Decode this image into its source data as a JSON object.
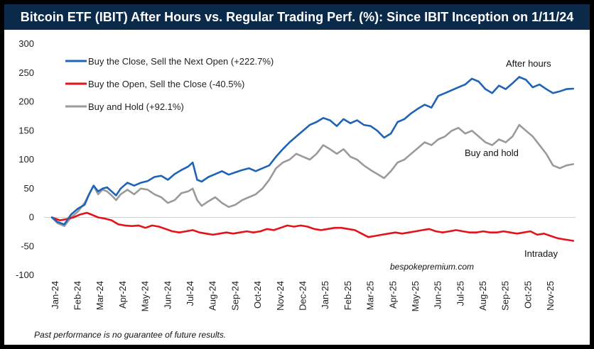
{
  "chart_data": {
    "type": "line",
    "title": "Bitcoin ETF (IBIT) After Hours vs. Regular Trading Perf. (%): Since IBIT Inception on 1/11/24",
    "ylim": [
      -100,
      300
    ],
    "y_ticks": [
      "300",
      "250",
      "200",
      "150",
      "100",
      "50",
      "0",
      "-50",
      "-100"
    ],
    "y_tick_values": [
      300,
      250,
      200,
      150,
      100,
      50,
      0,
      -50,
      -100
    ],
    "x_labels": [
      "Jan-24",
      "Feb-24",
      "Mar-24",
      "Apr-24",
      "May-24",
      "Jun-24",
      "Jul-24",
      "Aug-24",
      "Sep-24",
      "Oct-24",
      "Nov-24",
      "Dec-24",
      "Jan-25",
      "Feb-25",
      "Mar-25",
      "Apr-25",
      "May-25",
      "Jun-25",
      "Jul-25",
      "Aug-25",
      "Sep-25",
      "Oct-25",
      "Nov-25"
    ],
    "x_start": 0,
    "x_end": 23.6,
    "series": [
      {
        "name": "Buy the Close, Sell the Next Open (+222.7%)",
        "color": "#1f63b6",
        "points": [
          [
            0.35,
            0
          ],
          [
            0.6,
            -8
          ],
          [
            0.9,
            -12
          ],
          [
            1.2,
            5
          ],
          [
            1.5,
            15
          ],
          [
            1.8,
            22
          ],
          [
            2.0,
            40
          ],
          [
            2.2,
            55
          ],
          [
            2.4,
            45
          ],
          [
            2.6,
            50
          ],
          [
            2.8,
            52
          ],
          [
            3.0,
            45
          ],
          [
            3.2,
            38
          ],
          [
            3.4,
            50
          ],
          [
            3.7,
            60
          ],
          [
            4.0,
            55
          ],
          [
            4.3,
            60
          ],
          [
            4.6,
            63
          ],
          [
            4.9,
            70
          ],
          [
            5.2,
            72
          ],
          [
            5.5,
            65
          ],
          [
            5.8,
            75
          ],
          [
            6.1,
            82
          ],
          [
            6.4,
            88
          ],
          [
            6.6,
            95
          ],
          [
            6.8,
            65
          ],
          [
            7.0,
            62
          ],
          [
            7.3,
            70
          ],
          [
            7.6,
            75
          ],
          [
            7.9,
            80
          ],
          [
            8.2,
            74
          ],
          [
            8.5,
            78
          ],
          [
            8.8,
            82
          ],
          [
            9.1,
            85
          ],
          [
            9.4,
            80
          ],
          [
            9.7,
            85
          ],
          [
            10.0,
            90
          ],
          [
            10.3,
            105
          ],
          [
            10.6,
            118
          ],
          [
            10.9,
            130
          ],
          [
            11.2,
            140
          ],
          [
            11.5,
            150
          ],
          [
            11.8,
            160
          ],
          [
            12.1,
            165
          ],
          [
            12.4,
            172
          ],
          [
            12.7,
            168
          ],
          [
            13.0,
            158
          ],
          [
            13.3,
            170
          ],
          [
            13.6,
            163
          ],
          [
            13.9,
            168
          ],
          [
            14.2,
            160
          ],
          [
            14.5,
            158
          ],
          [
            14.8,
            150
          ],
          [
            15.1,
            138
          ],
          [
            15.4,
            145
          ],
          [
            15.7,
            165
          ],
          [
            16.0,
            170
          ],
          [
            16.3,
            180
          ],
          [
            16.6,
            188
          ],
          [
            16.9,
            195
          ],
          [
            17.2,
            190
          ],
          [
            17.5,
            210
          ],
          [
            17.8,
            215
          ],
          [
            18.1,
            220
          ],
          [
            18.4,
            225
          ],
          [
            18.7,
            230
          ],
          [
            19.0,
            240
          ],
          [
            19.3,
            235
          ],
          [
            19.6,
            222
          ],
          [
            19.9,
            215
          ],
          [
            20.2,
            228
          ],
          [
            20.5,
            222
          ],
          [
            20.8,
            232
          ],
          [
            21.1,
            243
          ],
          [
            21.4,
            238
          ],
          [
            21.7,
            225
          ],
          [
            22.0,
            230
          ],
          [
            22.3,
            222
          ],
          [
            22.6,
            215
          ],
          [
            22.9,
            218
          ],
          [
            23.2,
            222
          ],
          [
            23.5,
            222.7
          ]
        ]
      },
      {
        "name": "Buy the Open, Sell the Close (-40.5%)",
        "color": "#e6121a",
        "points": [
          [
            0.35,
            0
          ],
          [
            0.7,
            -5
          ],
          [
            1.0,
            -3
          ],
          [
            1.3,
            0
          ],
          [
            1.6,
            5
          ],
          [
            1.9,
            8
          ],
          [
            2.1,
            5
          ],
          [
            2.4,
            0
          ],
          [
            2.7,
            -2
          ],
          [
            3.0,
            -5
          ],
          [
            3.3,
            -12
          ],
          [
            3.6,
            -14
          ],
          [
            3.9,
            -15
          ],
          [
            4.2,
            -14
          ],
          [
            4.5,
            -18
          ],
          [
            4.8,
            -14
          ],
          [
            5.1,
            -16
          ],
          [
            5.4,
            -20
          ],
          [
            5.7,
            -24
          ],
          [
            6.0,
            -26
          ],
          [
            6.3,
            -24
          ],
          [
            6.6,
            -22
          ],
          [
            6.9,
            -26
          ],
          [
            7.2,
            -28
          ],
          [
            7.5,
            -30
          ],
          [
            7.8,
            -28
          ],
          [
            8.1,
            -26
          ],
          [
            8.4,
            -28
          ],
          [
            8.7,
            -26
          ],
          [
            9.0,
            -24
          ],
          [
            9.3,
            -26
          ],
          [
            9.6,
            -24
          ],
          [
            9.9,
            -20
          ],
          [
            10.2,
            -22
          ],
          [
            10.5,
            -18
          ],
          [
            10.8,
            -14
          ],
          [
            11.1,
            -16
          ],
          [
            11.4,
            -14
          ],
          [
            11.7,
            -16
          ],
          [
            12.0,
            -20
          ],
          [
            12.3,
            -22
          ],
          [
            12.6,
            -20
          ],
          [
            12.9,
            -18
          ],
          [
            13.2,
            -18
          ],
          [
            13.5,
            -20
          ],
          [
            13.8,
            -22
          ],
          [
            14.1,
            -28
          ],
          [
            14.4,
            -34
          ],
          [
            14.7,
            -32
          ],
          [
            15.0,
            -30
          ],
          [
            15.3,
            -28
          ],
          [
            15.6,
            -26
          ],
          [
            15.9,
            -28
          ],
          [
            16.2,
            -26
          ],
          [
            16.5,
            -24
          ],
          [
            16.8,
            -22
          ],
          [
            17.1,
            -20
          ],
          [
            17.4,
            -24
          ],
          [
            17.7,
            -26
          ],
          [
            18.0,
            -24
          ],
          [
            18.3,
            -22
          ],
          [
            18.6,
            -24
          ],
          [
            18.9,
            -26
          ],
          [
            19.2,
            -26
          ],
          [
            19.5,
            -24
          ],
          [
            19.8,
            -26
          ],
          [
            20.1,
            -26
          ],
          [
            20.4,
            -24
          ],
          [
            20.7,
            -26
          ],
          [
            21.0,
            -28
          ],
          [
            21.3,
            -26
          ],
          [
            21.6,
            -24
          ],
          [
            21.9,
            -30
          ],
          [
            22.2,
            -28
          ],
          [
            22.5,
            -32
          ],
          [
            22.8,
            -36
          ],
          [
            23.1,
            -38
          ],
          [
            23.5,
            -40.5
          ]
        ]
      },
      {
        "name": "Buy and Hold (+92.1%)",
        "color": "#9a9a9a",
        "points": [
          [
            0.35,
            0
          ],
          [
            0.6,
            -10
          ],
          [
            0.9,
            -15
          ],
          [
            1.2,
            0
          ],
          [
            1.5,
            10
          ],
          [
            1.8,
            25
          ],
          [
            2.0,
            40
          ],
          [
            2.2,
            55
          ],
          [
            2.4,
            40
          ],
          [
            2.6,
            48
          ],
          [
            2.8,
            45
          ],
          [
            3.0,
            38
          ],
          [
            3.2,
            30
          ],
          [
            3.4,
            40
          ],
          [
            3.7,
            48
          ],
          [
            4.0,
            40
          ],
          [
            4.3,
            50
          ],
          [
            4.6,
            48
          ],
          [
            4.9,
            40
          ],
          [
            5.2,
            35
          ],
          [
            5.5,
            25
          ],
          [
            5.8,
            30
          ],
          [
            6.1,
            42
          ],
          [
            6.4,
            45
          ],
          [
            6.6,
            50
          ],
          [
            6.8,
            30
          ],
          [
            7.0,
            20
          ],
          [
            7.3,
            28
          ],
          [
            7.6,
            35
          ],
          [
            7.9,
            25
          ],
          [
            8.2,
            18
          ],
          [
            8.5,
            22
          ],
          [
            8.8,
            30
          ],
          [
            9.1,
            35
          ],
          [
            9.4,
            40
          ],
          [
            9.7,
            50
          ],
          [
            10.0,
            65
          ],
          [
            10.3,
            85
          ],
          [
            10.6,
            95
          ],
          [
            10.9,
            100
          ],
          [
            11.2,
            110
          ],
          [
            11.5,
            105
          ],
          [
            11.8,
            100
          ],
          [
            12.1,
            110
          ],
          [
            12.4,
            125
          ],
          [
            12.7,
            118
          ],
          [
            13.0,
            110
          ],
          [
            13.3,
            118
          ],
          [
            13.6,
            105
          ],
          [
            13.9,
            100
          ],
          [
            14.2,
            90
          ],
          [
            14.5,
            82
          ],
          [
            14.8,
            75
          ],
          [
            15.1,
            68
          ],
          [
            15.4,
            80
          ],
          [
            15.7,
            95
          ],
          [
            16.0,
            100
          ],
          [
            16.3,
            110
          ],
          [
            16.6,
            120
          ],
          [
            16.9,
            130
          ],
          [
            17.2,
            125
          ],
          [
            17.5,
            135
          ],
          [
            17.8,
            140
          ],
          [
            18.1,
            150
          ],
          [
            18.4,
            155
          ],
          [
            18.7,
            145
          ],
          [
            19.0,
            150
          ],
          [
            19.3,
            140
          ],
          [
            19.6,
            130
          ],
          [
            19.9,
            125
          ],
          [
            20.2,
            135
          ],
          [
            20.5,
            130
          ],
          [
            20.8,
            140
          ],
          [
            21.1,
            160
          ],
          [
            21.4,
            150
          ],
          [
            21.7,
            140
          ],
          [
            22.0,
            125
          ],
          [
            22.3,
            110
          ],
          [
            22.6,
            90
          ],
          [
            22.9,
            85
          ],
          [
            23.2,
            90
          ],
          [
            23.5,
            92.1
          ]
        ]
      }
    ],
    "annotations": {
      "after_hours": "After hours",
      "buy_and_hold": "Buy and hold",
      "intraday": "Intraday"
    },
    "source": "bespokepremium.com",
    "footnote": "Past performance is no guarantee of future results."
  },
  "colors": {
    "title_bg": "#0b2a4a",
    "page_bg": "#000000"
  }
}
